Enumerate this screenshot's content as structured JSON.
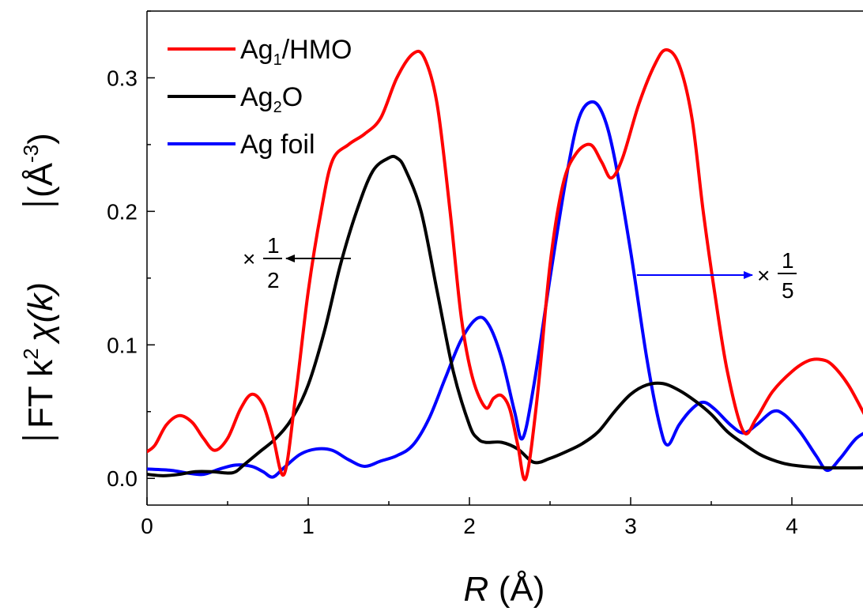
{
  "chart_data": {
    "type": "line",
    "xlabel": {
      "symbol": "R",
      "unit": "(Å)"
    },
    "ylabel": {
      "prefix": "FT k",
      "sup": "2",
      "chi": "χ(k)",
      "unit_open": "(Å",
      "unit_sup": "-3",
      "unit_close": ")"
    },
    "xlim": [
      0,
      4.5
    ],
    "ylim": [
      -0.02,
      0.35
    ],
    "xticks": [
      "0",
      "1",
      "2",
      "3",
      "4"
    ],
    "xtick_values": [
      0,
      1,
      2,
      3,
      4
    ],
    "yticks": [
      "0.0",
      "0.1",
      "0.2",
      "0.3"
    ],
    "ytick_values": [
      0.0,
      0.1,
      0.2,
      0.3
    ],
    "grid": false,
    "legend_placement": "top-left",
    "series": [
      {
        "name": "Ag1/HMO",
        "legend_base": "Ag",
        "legend_sub": "1",
        "legend_rest": "/HMO",
        "color": "#ff0000",
        "points": [
          [
            0,
            0.02
          ],
          [
            0.05,
            0.025
          ],
          [
            0.12,
            0.04
          ],
          [
            0.2,
            0.047
          ],
          [
            0.28,
            0.042
          ],
          [
            0.35,
            0.03
          ],
          [
            0.42,
            0.021
          ],
          [
            0.5,
            0.03
          ],
          [
            0.58,
            0.052
          ],
          [
            0.65,
            0.063
          ],
          [
            0.72,
            0.055
          ],
          [
            0.78,
            0.032
          ],
          [
            0.85,
            0.003
          ],
          [
            0.92,
            0.06
          ],
          [
            1.0,
            0.14
          ],
          [
            1.08,
            0.2
          ],
          [
            1.15,
            0.238
          ],
          [
            1.25,
            0.25
          ],
          [
            1.35,
            0.258
          ],
          [
            1.45,
            0.27
          ],
          [
            1.55,
            0.3
          ],
          [
            1.65,
            0.318
          ],
          [
            1.72,
            0.315
          ],
          [
            1.8,
            0.28
          ],
          [
            1.88,
            0.2
          ],
          [
            1.95,
            0.12
          ],
          [
            2.02,
            0.075
          ],
          [
            2.1,
            0.053
          ],
          [
            2.15,
            0.06
          ],
          [
            2.2,
            0.062
          ],
          [
            2.25,
            0.052
          ],
          [
            2.3,
            0.025
          ],
          [
            2.35,
            0.0
          ],
          [
            2.42,
            0.06
          ],
          [
            2.5,
            0.16
          ],
          [
            2.58,
            0.22
          ],
          [
            2.66,
            0.243
          ],
          [
            2.75,
            0.25
          ],
          [
            2.82,
            0.237
          ],
          [
            2.88,
            0.225
          ],
          [
            2.95,
            0.24
          ],
          [
            3.05,
            0.28
          ],
          [
            3.15,
            0.31
          ],
          [
            3.22,
            0.321
          ],
          [
            3.3,
            0.31
          ],
          [
            3.38,
            0.27
          ],
          [
            3.45,
            0.2
          ],
          [
            3.52,
            0.14
          ],
          [
            3.6,
            0.08
          ],
          [
            3.7,
            0.035
          ],
          [
            3.78,
            0.045
          ],
          [
            3.88,
            0.065
          ],
          [
            4.0,
            0.08
          ],
          [
            4.1,
            0.088
          ],
          [
            4.18,
            0.089
          ],
          [
            4.25,
            0.085
          ],
          [
            4.35,
            0.07
          ],
          [
            4.45,
            0.048
          ],
          [
            4.5,
            0.038
          ]
        ]
      },
      {
        "name": "Ag2O",
        "legend_base": "Ag",
        "legend_sub": "2",
        "legend_rest": "O",
        "color": "#000000",
        "points": [
          [
            0,
            0.003
          ],
          [
            0.1,
            0.002
          ],
          [
            0.2,
            0.003
          ],
          [
            0.3,
            0.005
          ],
          [
            0.4,
            0.005
          ],
          [
            0.5,
            0.004
          ],
          [
            0.55,
            0.005
          ],
          [
            0.6,
            0.01
          ],
          [
            0.7,
            0.02
          ],
          [
            0.8,
            0.03
          ],
          [
            0.9,
            0.045
          ],
          [
            1.0,
            0.07
          ],
          [
            1.1,
            0.11
          ],
          [
            1.2,
            0.16
          ],
          [
            1.3,
            0.2
          ],
          [
            1.4,
            0.23
          ],
          [
            1.5,
            0.24
          ],
          [
            1.55,
            0.24
          ],
          [
            1.6,
            0.232
          ],
          [
            1.7,
            0.2
          ],
          [
            1.8,
            0.14
          ],
          [
            1.9,
            0.08
          ],
          [
            2.0,
            0.04
          ],
          [
            2.05,
            0.03
          ],
          [
            2.1,
            0.027
          ],
          [
            2.2,
            0.027
          ],
          [
            2.3,
            0.022
          ],
          [
            2.4,
            0.012
          ],
          [
            2.5,
            0.015
          ],
          [
            2.6,
            0.02
          ],
          [
            2.7,
            0.026
          ],
          [
            2.8,
            0.035
          ],
          [
            2.9,
            0.05
          ],
          [
            3.0,
            0.063
          ],
          [
            3.1,
            0.07
          ],
          [
            3.2,
            0.071
          ],
          [
            3.3,
            0.066
          ],
          [
            3.4,
            0.058
          ],
          [
            3.5,
            0.048
          ],
          [
            3.6,
            0.035
          ],
          [
            3.7,
            0.026
          ],
          [
            3.8,
            0.018
          ],
          [
            3.9,
            0.013
          ],
          [
            4.0,
            0.01
          ],
          [
            4.2,
            0.008
          ],
          [
            4.5,
            0.008
          ]
        ]
      },
      {
        "name": "Ag foil",
        "legend_base": "Ag foil",
        "legend_sub": "",
        "legend_rest": "",
        "color": "#0000ff",
        "points": [
          [
            0,
            0.007
          ],
          [
            0.15,
            0.006
          ],
          [
            0.25,
            0.004
          ],
          [
            0.35,
            0.003
          ],
          [
            0.45,
            0.007
          ],
          [
            0.55,
            0.01
          ],
          [
            0.65,
            0.009
          ],
          [
            0.72,
            0.005
          ],
          [
            0.78,
            0.001
          ],
          [
            0.85,
            0.008
          ],
          [
            0.95,
            0.018
          ],
          [
            1.05,
            0.022
          ],
          [
            1.15,
            0.021
          ],
          [
            1.25,
            0.014
          ],
          [
            1.35,
            0.009
          ],
          [
            1.45,
            0.013
          ],
          [
            1.55,
            0.017
          ],
          [
            1.65,
            0.025
          ],
          [
            1.75,
            0.045
          ],
          [
            1.85,
            0.075
          ],
          [
            1.95,
            0.104
          ],
          [
            2.05,
            0.12
          ],
          [
            2.12,
            0.115
          ],
          [
            2.2,
            0.09
          ],
          [
            2.28,
            0.05
          ],
          [
            2.33,
            0.03
          ],
          [
            2.4,
            0.07
          ],
          [
            2.5,
            0.15
          ],
          [
            2.6,
            0.225
          ],
          [
            2.68,
            0.27
          ],
          [
            2.76,
            0.282
          ],
          [
            2.83,
            0.272
          ],
          [
            2.9,
            0.24
          ],
          [
            3.0,
            0.17
          ],
          [
            3.1,
            0.09
          ],
          [
            3.18,
            0.04
          ],
          [
            3.23,
            0.025
          ],
          [
            3.3,
            0.04
          ],
          [
            3.38,
            0.052
          ],
          [
            3.45,
            0.057
          ],
          [
            3.52,
            0.052
          ],
          [
            3.62,
            0.04
          ],
          [
            3.7,
            0.034
          ],
          [
            3.78,
            0.04
          ],
          [
            3.88,
            0.05
          ],
          [
            3.95,
            0.048
          ],
          [
            4.05,
            0.035
          ],
          [
            4.15,
            0.017
          ],
          [
            4.22,
            0.006
          ],
          [
            4.3,
            0.015
          ],
          [
            4.4,
            0.03
          ],
          [
            4.5,
            0.037
          ]
        ]
      }
    ],
    "annotations": [
      {
        "text_prefix": "×",
        "numerator": "1",
        "denominator": "2",
        "direction": "left",
        "applies_to": "Ag2O"
      },
      {
        "text_prefix": "×",
        "numerator": "1",
        "denominator": "5",
        "direction": "right",
        "applies_to": "Ag foil"
      }
    ]
  }
}
